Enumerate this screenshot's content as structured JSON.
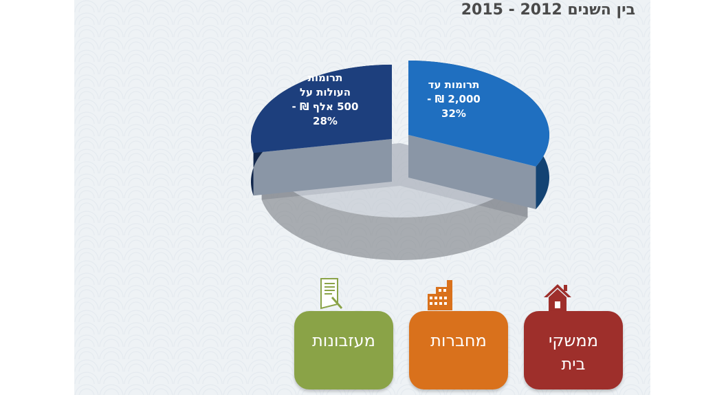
{
  "chart_data": {
    "type": "pie",
    "title": "בין השנים 2012 - 2015",
    "slices": [
      {
        "label_lines": [
          "תרומות עד",
          "2,000 ₪ -",
          "32%"
        ],
        "value": 32,
        "color": "#1f6fc0"
      },
      {
        "label_lines": [
          "תרומות",
          "העולות על",
          "500 אלף ₪ -",
          "28%"
        ],
        "value": 28,
        "color": "#1d3f7d"
      },
      {
        "label_lines": [],
        "value": 40,
        "color": "#b9c0c8"
      }
    ]
  },
  "categories": [
    {
      "label": "ממשקי בית",
      "icon": "house-icon",
      "color": "#9e2f2b"
    },
    {
      "label": "מחברות",
      "icon": "building-icon",
      "color": "#d9711c"
    },
    {
      "label": "מעזבונות",
      "icon": "document-icon",
      "color": "#8aa347"
    }
  ]
}
